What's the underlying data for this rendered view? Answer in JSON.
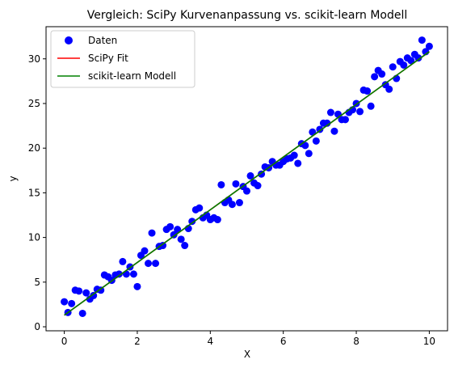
{
  "chart_data": {
    "type": "scatter",
    "title": "Vergleich: SciPy Kurvenanpassung vs. scikit-learn Modell",
    "xlabel": "X",
    "ylabel": "y",
    "xlim": [
      -0.5,
      10.5
    ],
    "ylim": [
      -0.45,
      33.6
    ],
    "xticks": [
      0,
      2,
      4,
      6,
      8,
      10
    ],
    "yticks": [
      0,
      5,
      10,
      15,
      20,
      25,
      30
    ],
    "grid": false,
    "legend_position": "top-left",
    "legend": [
      "Daten",
      "SciPy Fit",
      "scikit-learn Modell"
    ],
    "series": [
      {
        "name": "Daten",
        "kind": "scatter",
        "color": "#0000ff",
        "x": [
          0.0,
          0.1,
          0.2,
          0.3,
          0.4,
          0.5,
          0.6,
          0.7,
          0.8,
          0.9,
          1.0,
          1.1,
          1.2,
          1.3,
          1.4,
          1.5,
          1.6,
          1.7,
          1.8,
          1.9,
          2.0,
          2.1,
          2.2,
          2.3,
          2.4,
          2.5,
          2.6,
          2.7,
          2.8,
          2.9,
          3.0,
          3.1,
          3.2,
          3.3,
          3.4,
          3.5,
          3.6,
          3.7,
          3.8,
          3.9,
          4.0,
          4.1,
          4.2,
          4.3,
          4.4,
          4.5,
          4.6,
          4.7,
          4.8,
          4.9,
          5.0,
          5.1,
          5.2,
          5.3,
          5.4,
          5.5,
          5.6,
          5.7,
          5.8,
          5.9,
          6.0,
          6.1,
          6.2,
          6.3,
          6.4,
          6.5,
          6.6,
          6.7,
          6.8,
          6.9,
          7.0,
          7.1,
          7.2,
          7.3,
          7.4,
          7.5,
          7.6,
          7.7,
          7.8,
          7.9,
          8.0,
          8.1,
          8.2,
          8.3,
          8.4,
          8.5,
          8.6,
          8.7,
          8.8,
          8.9,
          9.0,
          9.1,
          9.2,
          9.3,
          9.4,
          9.5,
          9.6,
          9.7,
          9.8,
          9.9,
          10.0
        ],
        "y": [
          2.8,
          1.6,
          2.6,
          4.1,
          4.0,
          1.5,
          3.8,
          3.1,
          3.5,
          4.2,
          4.1,
          5.8,
          5.6,
          5.2,
          5.8,
          5.9,
          7.3,
          5.9,
          6.7,
          5.9,
          4.5,
          8.0,
          8.5,
          7.1,
          10.5,
          7.1,
          9.0,
          9.1,
          10.9,
          11.2,
          10.3,
          10.9,
          9.8,
          9.1,
          11.0,
          11.8,
          13.1,
          13.3,
          12.2,
          12.5,
          12.0,
          12.2,
          12.0,
          15.9,
          13.9,
          14.2,
          13.7,
          16.0,
          13.9,
          15.7,
          15.2,
          16.9,
          16.1,
          15.8,
          17.1,
          17.9,
          17.8,
          18.5,
          18.1,
          18.1,
          18.5,
          18.8,
          18.9,
          19.2,
          18.3,
          20.5,
          20.3,
          19.4,
          21.8,
          20.8,
          22.1,
          22.8,
          22.8,
          24.0,
          21.9,
          23.8,
          23.2,
          23.2,
          24.0,
          24.3,
          25.0,
          24.1,
          26.5,
          26.4,
          24.7,
          28.0,
          28.7,
          28.3,
          27.1,
          26.6,
          29.1,
          27.8,
          29.7,
          29.3,
          30.1,
          29.8,
          30.5,
          30.1,
          32.1,
          30.8,
          31.4
        ]
      },
      {
        "name": "SciPy Fit",
        "kind": "line",
        "color": "#ff0000",
        "x": [
          0,
          10
        ],
        "y": [
          1.3,
          30.8
        ]
      },
      {
        "name": "scikit-learn Modell",
        "kind": "line",
        "color": "#008000",
        "x": [
          0,
          10
        ],
        "y": [
          1.3,
          30.8
        ]
      }
    ]
  }
}
